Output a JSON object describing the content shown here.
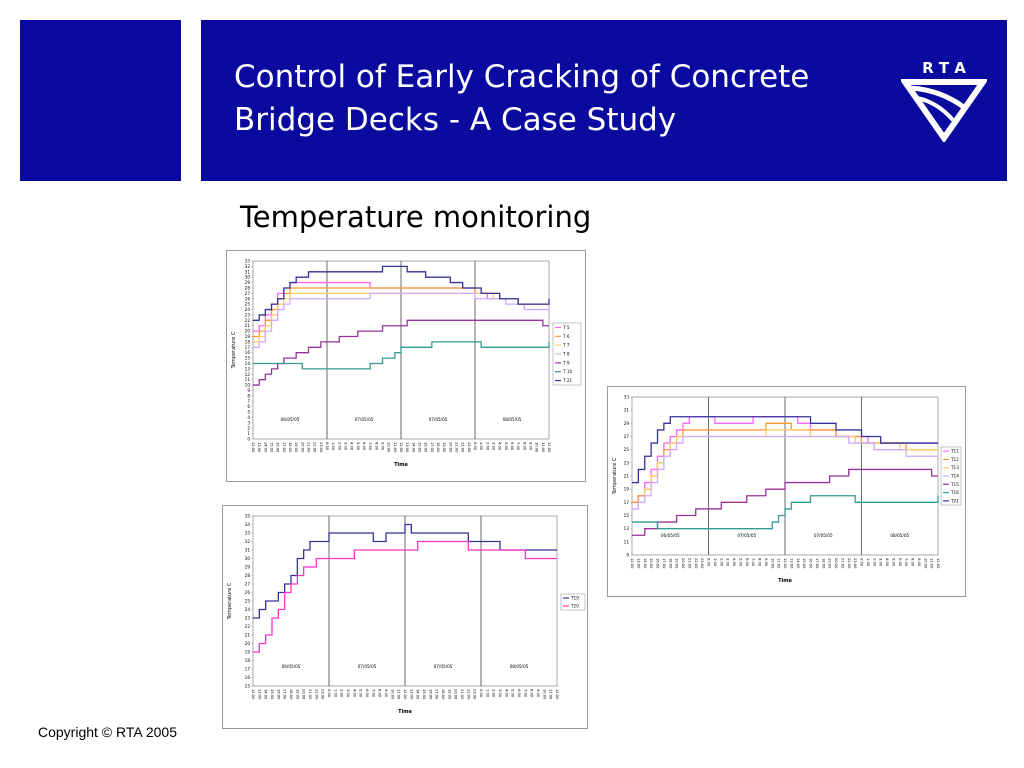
{
  "slide": {
    "title_line1": "Control of Early Cracking of Concrete",
    "title_line2": "Bridge Decks - A Case Study",
    "logo_text": "R T A",
    "subtitle": "Temperature monitoring",
    "footer": "Copyright © RTA 2005"
  },
  "colors": {
    "header_bg": "#0a0a9e",
    "series": [
      "#ff66ff",
      "#ff9933",
      "#ffcc66",
      "#ccaaff",
      "#993399",
      "#339999",
      "#333399"
    ]
  },
  "chart_data": [
    {
      "type": "line",
      "title": "",
      "xlabel": "Time",
      "ylabel": "Temperature C",
      "ylim": [
        0,
        33
      ],
      "yticks": [
        "0",
        "1",
        "2",
        "3",
        "4",
        "5",
        "6",
        "7",
        "8",
        "9",
        "10",
        "11",
        "12",
        "13",
        "14",
        "15",
        "16",
        "17",
        "18",
        "19",
        "20",
        "21",
        "22",
        "23",
        "24",
        "25",
        "26",
        "27",
        "28",
        "29",
        "30",
        "31",
        "32",
        "33"
      ],
      "xticks": [
        "12:00",
        "13:00",
        "14:00",
        "15:00",
        "16:00",
        "17:00",
        "18:00",
        "19:00",
        "20:00",
        "21:00",
        "22:00",
        "23:00",
        "0:00",
        "1:00",
        "2:00",
        "3:00",
        "4:00",
        "5:00",
        "6:00",
        "7:00",
        "8:00",
        "9:00",
        "10:00",
        "11:00",
        "12:00",
        "13:00",
        "14:00",
        "15:00",
        "16:00",
        "17:00",
        "18:00",
        "19:00",
        "20:00",
        "21:00",
        "22:00",
        "23:00",
        "0:00",
        "1:00",
        "2:00",
        "3:00",
        "4:00",
        "5:00",
        "6:00",
        "7:00",
        "8:00",
        "9:00",
        "10:00",
        "11:00",
        "12:00"
      ],
      "day_labels": [
        "06/05/05",
        "07/05/05",
        "07/05/05",
        "08/05/05"
      ],
      "legend": "right",
      "series": [
        {
          "name": "T 5",
          "color": "#ff66ff",
          "values": [
            20,
            21,
            23,
            25,
            27,
            28,
            29,
            29,
            29,
            29,
            29,
            29,
            29,
            29,
            29,
            29,
            29,
            29,
            29,
            28,
            28,
            28,
            28,
            28,
            28,
            28,
            28,
            28,
            28,
            28,
            28,
            28,
            28,
            28,
            28,
            28,
            27,
            27,
            26,
            26,
            26,
            26,
            26,
            25,
            25,
            25,
            25,
            25,
            25
          ]
        },
        {
          "name": "T 6",
          "color": "#ff9933",
          "values": [
            19,
            20,
            22,
            24,
            26,
            27,
            28,
            28,
            28,
            28,
            28,
            28,
            28,
            28,
            28,
            28,
            28,
            28,
            28,
            28,
            28,
            28,
            28,
            28,
            28,
            28,
            28,
            28,
            28,
            28,
            28,
            28,
            28,
            28,
            28,
            28,
            27,
            27,
            27,
            27,
            26,
            26,
            26,
            25,
            25,
            25,
            25,
            25,
            25
          ]
        },
        {
          "name": "T 7",
          "color": "#ffcc66",
          "values": [
            18,
            19,
            21,
            23,
            25,
            26,
            27,
            27,
            27,
            27,
            27,
            27,
            27,
            27,
            27,
            27,
            27,
            27,
            27,
            27,
            27,
            27,
            27,
            27,
            27,
            27,
            27,
            27,
            27,
            27,
            27,
            27,
            27,
            27,
            27,
            27,
            27,
            27,
            27,
            26,
            26,
            26,
            26,
            25,
            25,
            25,
            25,
            25,
            25
          ]
        },
        {
          "name": "T 8",
          "color": "#ccaaff",
          "values": [
            17,
            18,
            20,
            22,
            24,
            25,
            26,
            26,
            26,
            26,
            26,
            26,
            26,
            26,
            26,
            26,
            26,
            26,
            26,
            27,
            27,
            27,
            27,
            27,
            27,
            27,
            27,
            27,
            27,
            27,
            27,
            27,
            27,
            27,
            27,
            27,
            26,
            26,
            26,
            26,
            26,
            25,
            25,
            25,
            24,
            24,
            24,
            24,
            24
          ]
        },
        {
          "name": "T 9",
          "color": "#993399",
          "values": [
            10,
            11,
            12,
            13,
            14,
            15,
            15,
            16,
            16,
            17,
            17,
            18,
            18,
            18,
            19,
            19,
            19,
            20,
            20,
            20,
            20,
            21,
            21,
            21,
            21,
            22,
            22,
            22,
            22,
            22,
            22,
            22,
            22,
            22,
            22,
            22,
            22,
            22,
            22,
            22,
            22,
            22,
            22,
            22,
            22,
            22,
            22,
            21,
            21
          ]
        },
        {
          "name": "T 10",
          "color": "#339999",
          "values": [
            14,
            14,
            14,
            14,
            14,
            14,
            14,
            14,
            13,
            13,
            13,
            13,
            13,
            13,
            13,
            13,
            13,
            13,
            13,
            14,
            14,
            15,
            15,
            16,
            17,
            17,
            17,
            17,
            17,
            18,
            18,
            18,
            18,
            18,
            18,
            18,
            18,
            17,
            17,
            17,
            17,
            17,
            17,
            17,
            17,
            17,
            17,
            17,
            18
          ]
        },
        {
          "name": "T 21",
          "color": "#333399",
          "values": [
            22,
            23,
            24,
            25,
            26,
            28,
            29,
            30,
            30,
            31,
            31,
            31,
            31,
            31,
            31,
            31,
            31,
            31,
            31,
            31,
            31,
            32,
            32,
            32,
            32,
            31,
            31,
            31,
            30,
            30,
            30,
            30,
            29,
            29,
            28,
            28,
            28,
            27,
            27,
            27,
            26,
            26,
            26,
            25,
            25,
            25,
            25,
            25,
            26
          ]
        }
      ]
    },
    {
      "type": "line",
      "title": "",
      "xlabel": "Time",
      "ylabel": "Temperature C",
      "ylim": [
        9,
        33
      ],
      "yticks": [
        "9",
        "11",
        "13",
        "15",
        "17",
        "19",
        "21",
        "23",
        "25",
        "27",
        "29",
        "31",
        "33"
      ],
      "xticks": [
        "12:00",
        "13:00",
        "14:00",
        "15:00",
        "16:00",
        "17:00",
        "18:00",
        "19:00",
        "20:00",
        "21:00",
        "22:00",
        "23:00",
        "0:00",
        "1:00",
        "2:00",
        "3:00",
        "4:00",
        "5:00",
        "6:00",
        "7:00",
        "8:00",
        "9:00",
        "10:00",
        "11:00",
        "12:00",
        "13:00",
        "14:00",
        "15:00",
        "16:00",
        "17:00",
        "18:00",
        "19:00",
        "20:00",
        "21:00",
        "22:00",
        "23:00",
        "0:00",
        "1:00",
        "2:00",
        "3:00",
        "4:00",
        "5:00",
        "6:00",
        "7:00",
        "8:00",
        "9:00",
        "10:00",
        "11:00",
        "12:00"
      ],
      "day_labels": [
        "06/05/05",
        "07/05/05",
        "07/05/05",
        "08/05/05"
      ],
      "legend": "right",
      "series": [
        {
          "name": "T11",
          "color": "#ff66ff",
          "values": [
            17,
            18,
            20,
            22,
            24,
            26,
            27,
            28,
            29,
            30,
            30,
            30,
            30,
            29,
            29,
            29,
            29,
            29,
            29,
            30,
            30,
            30,
            30,
            30,
            30,
            30,
            29,
            29,
            28,
            28,
            28,
            28,
            27,
            27,
            27,
            27,
            27,
            26,
            26,
            26,
            26,
            26,
            26,
            26,
            26,
            26,
            26,
            26,
            26
          ]
        },
        {
          "name": "T12",
          "color": "#ff9933",
          "values": [
            17,
            18,
            19,
            21,
            23,
            25,
            26,
            27,
            28,
            28,
            28,
            28,
            28,
            28,
            28,
            28,
            28,
            28,
            28,
            28,
            28,
            29,
            29,
            29,
            29,
            28,
            28,
            28,
            28,
            28,
            28,
            28,
            27,
            27,
            27,
            27,
            26,
            26,
            26,
            26,
            26,
            26,
            26,
            25,
            25,
            25,
            25,
            25,
            25
          ]
        },
        {
          "name": "T13",
          "color": "#ffcc66",
          "values": [
            16,
            17,
            19,
            21,
            23,
            24,
            26,
            27,
            27,
            27,
            27,
            27,
            27,
            27,
            27,
            27,
            27,
            27,
            27,
            27,
            27,
            28,
            28,
            28,
            28,
            28,
            28,
            28,
            27,
            27,
            27,
            27,
            27,
            27,
            27,
            26,
            26,
            26,
            26,
            26,
            26,
            26,
            25,
            25,
            25,
            25,
            25,
            25,
            25
          ]
        },
        {
          "name": "T14",
          "color": "#ccaaff",
          "values": [
            16,
            17,
            18,
            20,
            22,
            24,
            25,
            26,
            27,
            27,
            27,
            27,
            27,
            27,
            27,
            27,
            27,
            27,
            27,
            27,
            27,
            27,
            27,
            27,
            27,
            27,
            27,
            27,
            27,
            27,
            27,
            27,
            27,
            27,
            26,
            26,
            26,
            26,
            25,
            25,
            25,
            25,
            25,
            24,
            24,
            24,
            24,
            24,
            24
          ]
        },
        {
          "name": "T15",
          "color": "#993399",
          "values": [
            12,
            12,
            13,
            13,
            14,
            14,
            14,
            15,
            15,
            15,
            16,
            16,
            16,
            16,
            17,
            17,
            17,
            17,
            18,
            18,
            18,
            19,
            19,
            19,
            20,
            20,
            20,
            20,
            20,
            20,
            20,
            21,
            21,
            21,
            22,
            22,
            22,
            22,
            22,
            22,
            22,
            22,
            22,
            22,
            22,
            22,
            22,
            21,
            21
          ]
        },
        {
          "name": "T16",
          "color": "#339999",
          "values": [
            14,
            14,
            14,
            14,
            13,
            13,
            13,
            13,
            13,
            13,
            13,
            13,
            13,
            13,
            13,
            13,
            13,
            13,
            13,
            13,
            13,
            13,
            14,
            15,
            16,
            17,
            17,
            17,
            18,
            18,
            18,
            18,
            18,
            18,
            18,
            17,
            17,
            17,
            17,
            17,
            17,
            17,
            17,
            17,
            17,
            17,
            17,
            17,
            18
          ]
        },
        {
          "name": "T21",
          "color": "#333399",
          "values": [
            20,
            22,
            24,
            26,
            28,
            29,
            30,
            30,
            30,
            30,
            30,
            30,
            30,
            30,
            30,
            30,
            30,
            30,
            30,
            30,
            30,
            30,
            30,
            30,
            30,
            30,
            30,
            30,
            29,
            29,
            29,
            29,
            28,
            28,
            28,
            28,
            27,
            27,
            27,
            26,
            26,
            26,
            26,
            26,
            26,
            26,
            26,
            26,
            26
          ]
        }
      ]
    },
    {
      "type": "line",
      "title": "",
      "xlabel": "Time",
      "ylabel": "Temperature C",
      "ylim": [
        15,
        35
      ],
      "yticks": [
        "15",
        "16",
        "17",
        "18",
        "19",
        "20",
        "21",
        "22",
        "23",
        "24",
        "25",
        "26",
        "27",
        "28",
        "29",
        "30",
        "31",
        "32",
        "33",
        "34",
        "35"
      ],
      "xticks": [
        "12:00",
        "13:00",
        "14:00",
        "15:00",
        "16:00",
        "17:00",
        "18:00",
        "19:00",
        "20:00",
        "21:00",
        "22:00",
        "23:00",
        "0:00",
        "1:00",
        "2:00",
        "3:00",
        "4:00",
        "5:00",
        "6:00",
        "7:00",
        "8:00",
        "9:00",
        "10:00",
        "11:00",
        "12:00",
        "13:00",
        "14:00",
        "15:00",
        "16:00",
        "17:00",
        "18:00",
        "19:00",
        "20:00",
        "21:00",
        "22:00",
        "23:00",
        "0:00",
        "1:00",
        "2:00",
        "3:00",
        "4:00",
        "5:00",
        "6:00",
        "7:00",
        "8:00",
        "9:00",
        "10:00",
        "11:00",
        "12:00"
      ],
      "day_labels": [
        "06/05/05",
        "07/05/05",
        "07/05/05",
        "08/05/05"
      ],
      "legend": "right",
      "series": [
        {
          "name": "T19",
          "color": "#333399",
          "values": [
            23,
            24,
            25,
            25,
            26,
            27,
            28,
            30,
            31,
            32,
            32,
            32,
            33,
            33,
            33,
            33,
            33,
            33,
            33,
            32,
            32,
            33,
            33,
            33,
            34,
            33,
            33,
            33,
            33,
            33,
            33,
            33,
            33,
            33,
            32,
            32,
            32,
            32,
            32,
            31,
            31,
            31,
            31,
            31,
            31,
            31,
            31,
            31,
            31
          ]
        },
        {
          "name": "T20",
          "color": "#ff33cc",
          "values": [
            19,
            20,
            21,
            23,
            24,
            26,
            27,
            28,
            29,
            29,
            30,
            30,
            30,
            30,
            30,
            30,
            31,
            31,
            31,
            31,
            31,
            31,
            31,
            31,
            31,
            31,
            32,
            32,
            32,
            32,
            32,
            32,
            32,
            32,
            31,
            31,
            31,
            31,
            31,
            31,
            31,
            31,
            31,
            30,
            30,
            30,
            30,
            30,
            30
          ]
        }
      ]
    }
  ]
}
